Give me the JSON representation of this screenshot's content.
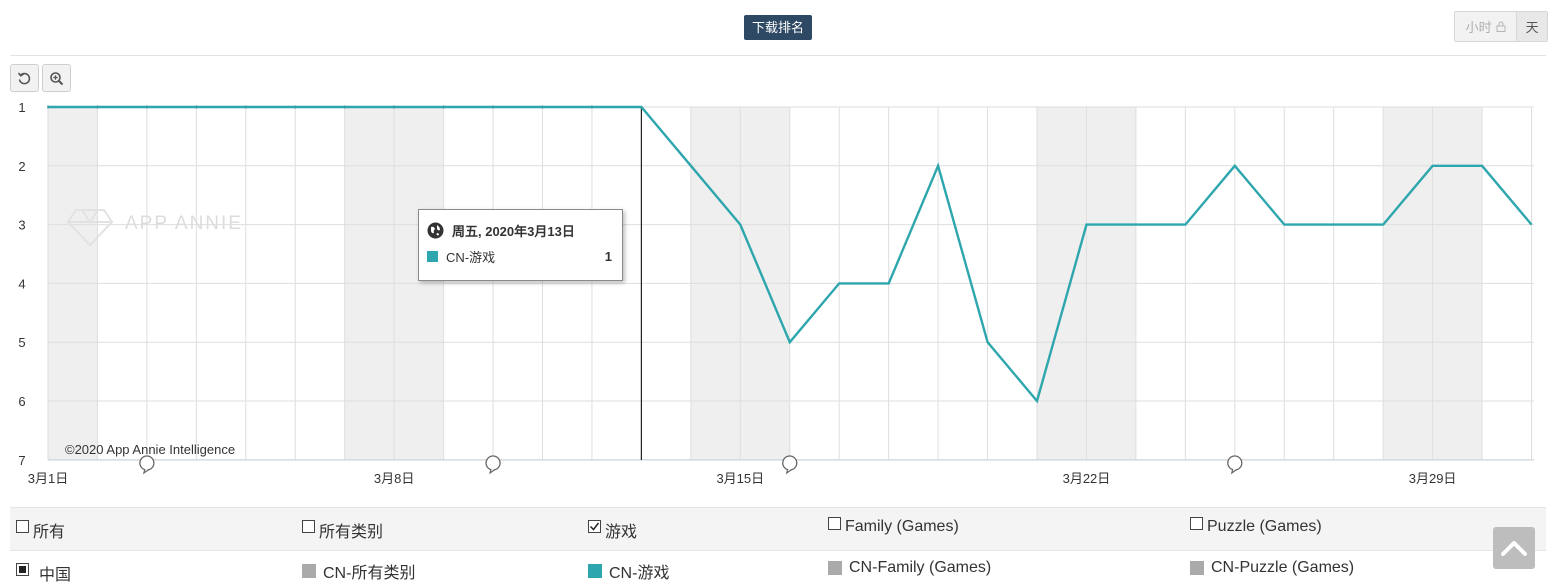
{
  "header": {
    "title": "下载排名",
    "toggle": {
      "hour_label": "小时",
      "day_label": "天"
    }
  },
  "toolbar": {
    "reset_icon": "reset-zoom-icon",
    "zoom_icon": "zoom-icon"
  },
  "watermark": "APP ANNIE",
  "credit": "©2020 App Annie Intelligence",
  "tooltip": {
    "date": "周五, 2020年3月13日",
    "series_label": "CN-游戏",
    "value": "1",
    "color": "#2ea6ad"
  },
  "chart_data": {
    "type": "line",
    "series": [
      {
        "name": "CN-游戏",
        "color": "#2ea6ad",
        "x": [
          "3月1日",
          "3月2日",
          "3月3日",
          "3月4日",
          "3月5日",
          "3月6日",
          "3月7日",
          "3月8日",
          "3月9日",
          "3月10日",
          "3月11日",
          "3月12日",
          "3月13日",
          "3月14日",
          "3月15日",
          "3月16日",
          "3月17日",
          "3月18日",
          "3月19日",
          "3月20日",
          "3月21日",
          "3月22日",
          "3月23日",
          "3月24日",
          "3月25日",
          "3月26日",
          "3月27日",
          "3月28日",
          "3月29日",
          "3月30日",
          "3月31日"
        ],
        "values": [
          1,
          1,
          1,
          1,
          1,
          1,
          1,
          1,
          1,
          1,
          1,
          1,
          1,
          2,
          3,
          5,
          4,
          4,
          2,
          5,
          6,
          3,
          3,
          3,
          2,
          3,
          3,
          3,
          2,
          2,
          3
        ]
      }
    ],
    "x_tick_labels": [
      "3月1日",
      "3月8日",
      "3月15日",
      "3月22日",
      "3月29日"
    ],
    "y_tick_labels": [
      "1",
      "2",
      "3",
      "4",
      "5",
      "6",
      "7"
    ],
    "ylim": [
      1,
      7
    ],
    "y_reversed": true,
    "grid": true,
    "weekend_shading": true,
    "highlight_x": "3月13日",
    "event_markers": [
      "3月3日",
      "3月10日",
      "3月16日",
      "3月25日"
    ]
  },
  "legend": {
    "row1": [
      {
        "label": "所有",
        "checked": false
      },
      {
        "label": "所有类别",
        "checked": false
      },
      {
        "label": "游戏",
        "checked": true
      },
      {
        "label": "Family (Games)",
        "checked": false
      },
      {
        "label": "Puzzle (Games)",
        "checked": false
      }
    ],
    "row2": {
      "country": "中国",
      "series": [
        {
          "label": "CN-所有类别",
          "color": "#aaaaaa"
        },
        {
          "label": "CN-游戏",
          "color": "#2ea6ad"
        },
        {
          "label": "CN-Family (Games)",
          "color": "#aaaaaa"
        },
        {
          "label": "CN-Puzzle (Games)",
          "color": "#aaaaaa"
        }
      ]
    }
  },
  "scroll_top_icon": "chevron-up-icon"
}
